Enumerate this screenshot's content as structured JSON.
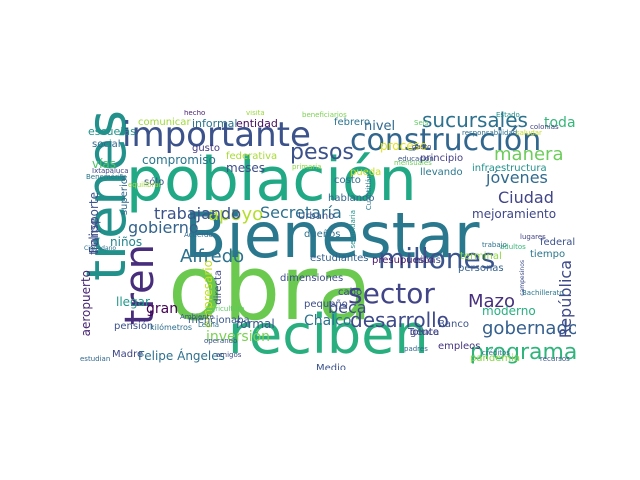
{
  "words": [
    {
      "text": "obra",
      "color": "#6cc94f"
    },
    {
      "text": "Bienestar",
      "color": "#2a788e"
    },
    {
      "text": "población",
      "color": "#21a885"
    },
    {
      "text": "trenes",
      "color": "#22918b"
    },
    {
      "text": "reciben",
      "color": "#29af7f"
    },
    {
      "text": "importante",
      "color": "#3b528b"
    },
    {
      "text": "construcción",
      "color": "#31668e"
    },
    {
      "text": "millones",
      "color": "#3a548c"
    },
    {
      "text": "sector",
      "color": "#414487"
    },
    {
      "text": "tren",
      "color": "#472d7b"
    },
    {
      "text": "programa",
      "color": "#2fb47c"
    },
    {
      "text": "gobernador",
      "color": "#355f8d"
    },
    {
      "text": "desarrollo",
      "color": "#3e4a89"
    },
    {
      "text": "pesos",
      "color": "#3b518b"
    },
    {
      "text": "sucursales",
      "color": "#2c718e"
    },
    {
      "text": "apoyo",
      "color": "#b5de2b"
    },
    {
      "text": "manera",
      "color": "#6ccd5a"
    },
    {
      "text": "jóvenes",
      "color": "#306a8e"
    },
    {
      "text": "Secretaría",
      "color": "#2d708e"
    },
    {
      "text": "Ciudad",
      "color": "#414487"
    },
    {
      "text": "gobierno",
      "color": "#33638d"
    },
    {
      "text": "Alfredo",
      "color": "#2c728e"
    },
    {
      "text": "trabajando",
      "color": "#3b528b"
    },
    {
      "text": "Mazo",
      "color": "#46307e"
    },
    {
      "text": "República",
      "color": "#3e4989"
    },
    {
      "text": "beca",
      "color": "#3d4d8a"
    },
    {
      "text": "inversión",
      "color": "#7ad151"
    },
    {
      "text": "Felipe Ángeles",
      "color": "#2d708e"
    },
    {
      "text": "moderno",
      "color": "#29af7f"
    },
    {
      "text": "Chalco",
      "color": "#2c738e"
    },
    {
      "text": "formal",
      "color": "#38588c"
    },
    {
      "text": "aeropuerto",
      "color": "#482576"
    },
    {
      "text": "compromiso",
      "color": "#2a768e"
    },
    {
      "text": "nivel",
      "color": "#31688e"
    },
    {
      "text": "toda",
      "color": "#35b779"
    },
    {
      "text": "mejoramiento",
      "color": "#3f4788"
    },
    {
      "text": "gran",
      "color": "#440154"
    },
    {
      "text": "empresario",
      "color": "#c2df23"
    },
    {
      "text": "Felipe",
      "color": "#3e4a89"
    },
    {
      "text": "transporte",
      "color": "#3b528b"
    },
    {
      "text": "escuelas",
      "color": "#21918c"
    },
    {
      "text": "social",
      "color": "#31688e"
    },
    {
      "text": "vías",
      "color": "#52c569"
    },
    {
      "text": "niños",
      "color": "#25858e"
    },
    {
      "text": "estudiantes",
      "color": "#34608d"
    },
    {
      "text": "presupuesto",
      "color": "#481668"
    },
    {
      "text": "personas",
      "color": "#34608d"
    },
    {
      "text": "federal",
      "color": "#3b528b"
    },
    {
      "text": "infraestructura",
      "color": "#21918c"
    },
    {
      "text": "principio",
      "color": "#433e85"
    },
    {
      "text": "llevando",
      "color": "#2a788e"
    },
    {
      "text": "entidad",
      "color": "#460b5e"
    },
    {
      "text": "informal",
      "color": "#2a768e"
    },
    {
      "text": "comunicar",
      "color": "#9fda3a"
    },
    {
      "text": "llegar",
      "color": "#1f998a"
    },
    {
      "text": "pensión",
      "color": "#3b528b"
    },
    {
      "text": "Madre",
      "color": "#3f4788"
    },
    {
      "text": "meses",
      "color": "#3d4e8a"
    },
    {
      "text": "mencionaba",
      "color": "#39568c"
    },
    {
      "text": "Urbano",
      "color": "#3a548c"
    },
    {
      "text": "costo",
      "color": "#2e6e8e"
    },
    {
      "text": "pueda",
      "color": "#c8e020"
    },
    {
      "text": "hablando",
      "color": "#33638d"
    },
    {
      "text": "febrero",
      "color": "#2b748e"
    },
    {
      "text": "proceso",
      "color": "#e5e419"
    },
    {
      "text": "Medio",
      "color": "#3b528b"
    },
    {
      "text": "empleos",
      "color": "#46337f"
    },
    {
      "text": "pandemia",
      "color": "#8bd646"
    },
    {
      "text": "Banco",
      "color": "#3b528b"
    },
    {
      "text": "Toluca",
      "color": "#3e4989"
    },
    {
      "text": "terminal",
      "color": "#8fd744"
    },
    {
      "text": "tiempo",
      "color": "#2a768e"
    },
    {
      "text": "superior",
      "color": "#31688e"
    },
    {
      "text": "sólo",
      "color": "#3a538b"
    },
    {
      "text": "gusto",
      "color": "#443983"
    },
    {
      "text": "federativa",
      "color": "#a8db34"
    },
    {
      "text": "directa",
      "color": "#3e4a89"
    },
    {
      "text": "dimensiones",
      "color": "#3d4d8a"
    },
    {
      "text": "pequeño",
      "color": "#3c4f8a"
    },
    {
      "text": "cabo",
      "color": "#3f4889"
    },
    {
      "text": "dueños",
      "color": "#2d718e"
    },
    {
      "text": "gente",
      "color": "#414487"
    },
    {
      "text": "kilómetros",
      "color": "#2e6e8e"
    },
    {
      "text": "niñas",
      "color": "#3d4e8a"
    },
    {
      "text": "hecho",
      "color": "#481f70"
    },
    {
      "text": "visita",
      "color": "#9bd93c"
    },
    {
      "text": "beneficiarios",
      "color": "#7ad151"
    },
    {
      "text": "Estado",
      "color": "#21918c"
    },
    {
      "text": "responsabilidad",
      "color": "#2c718e"
    },
    {
      "text": "Ixtapaluca",
      "color": "#414487"
    },
    {
      "text": "Benemérita",
      "color": "#2a788e"
    },
    {
      "text": "equilibrar",
      "color": "#a0da39"
    },
    {
      "text": "Ciudadano",
      "color": "#2c728e"
    },
    {
      "text": "Acuerdo",
      "color": "#31688e"
    },
    {
      "text": "Agricultura",
      "color": "#5ec962"
    },
    {
      "text": "Ambiente",
      "color": "#3b528b"
    },
    {
      "text": "Leona",
      "color": "#2a788e"
    },
    {
      "text": "operando",
      "color": "#3b528b"
    },
    {
      "text": "estudian",
      "color": "#31688e"
    },
    {
      "text": "amigos",
      "color": "#3e4a89"
    },
    {
      "text": "padres",
      "color": "#31688e"
    },
    {
      "text": "créditos",
      "color": "#2c728e"
    },
    {
      "text": "recursos",
      "color": "#3b528b"
    },
    {
      "text": "Bachillerato",
      "color": "#2a788e"
    },
    {
      "text": "campesinos",
      "color": "#3d4d8a"
    },
    {
      "text": "lugares",
      "color": "#414487"
    },
    {
      "text": "adultos",
      "color": "#35b779"
    },
    {
      "text": "trabajo",
      "color": "#2c728e"
    },
    {
      "text": "primaria",
      "color": "#8fd744"
    },
    {
      "text": "educación",
      "color": "#3b528b"
    },
    {
      "text": "Seis",
      "color": "#5ec962"
    },
    {
      "text": "gasto",
      "color": "#3e4989"
    },
    {
      "text": "secundaria",
      "color": "#21918c"
    },
    {
      "text": "Cuautitlán",
      "color": "#2a788e"
    },
    {
      "text": "mensuales",
      "color": "#6ccd5a"
    },
    {
      "text": "colonias",
      "color": "#414487"
    },
    {
      "text": "saludar",
      "color": "#c8e020"
    }
  ]
}
